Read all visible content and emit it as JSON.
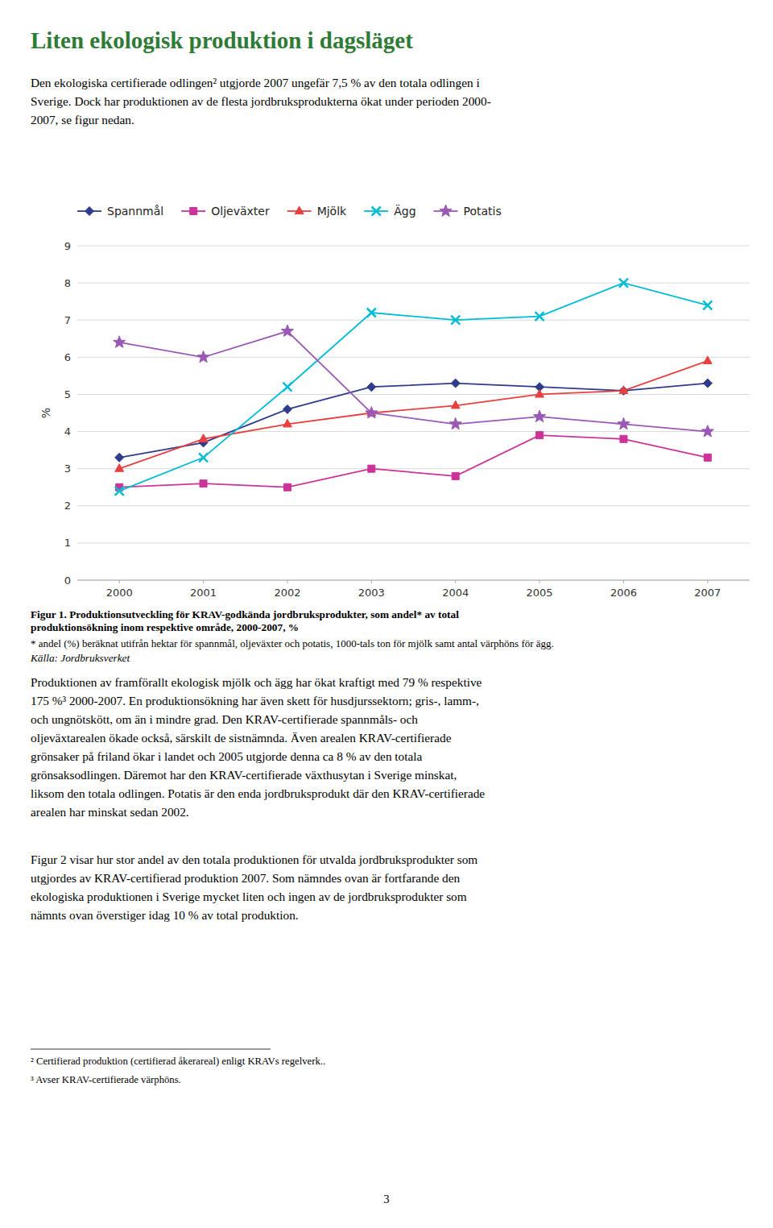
{
  "chart_data": {
    "type": "line",
    "title": "Liten ekologisk produktion i dagsläget",
    "x": [
      2000,
      2001,
      2002,
      2003,
      2004,
      2005,
      2006,
      2007
    ],
    "xlim": [
      1999.5,
      2007.5
    ],
    "xticks": [
      2000,
      2001,
      2002,
      2003,
      2004,
      2005,
      2006,
      2007
    ],
    "ylim": [
      0,
      9
    ],
    "yticks": [
      0,
      1,
      2,
      3,
      4,
      5,
      6,
      7,
      8,
      9
    ],
    "ylabel": "%",
    "grid": true,
    "legend": "top-left",
    "series": [
      {
        "name": "Spannmål",
        "color": "#2f3b8c",
        "marker": "diamond",
        "line_style": "solid",
        "values": [
          3.3,
          3.7,
          4.6,
          5.2,
          5.3,
          5.2,
          5.1,
          5.3
        ]
      },
      {
        "name": "Oljeväxter",
        "color": "#cc3399",
        "marker": "square",
        "line_style": "solid",
        "values": [
          2.5,
          2.6,
          2.5,
          3.0,
          2.8,
          3.9,
          3.8,
          3.3
        ]
      },
      {
        "name": "Mjölk",
        "color": "#e84040",
        "marker": "triangle",
        "line_style": "solid",
        "values": [
          3.0,
          3.8,
          4.2,
          4.5,
          4.7,
          5.0,
          5.1,
          5.9
        ]
      },
      {
        "name": "Ägg",
        "color": "#00bcd4",
        "marker": "x",
        "line_style": "solid",
        "values": [
          2.4,
          3.3,
          5.2,
          7.2,
          7.0,
          7.1,
          8.0,
          7.4
        ]
      },
      {
        "name": "Potatis",
        "color": "#9b59b6",
        "marker": "star",
        "line_style": "solid",
        "values": [
          6.4,
          6.0,
          6.7,
          4.5,
          4.2,
          4.4,
          4.2,
          4.0
        ]
      }
    ],
    "annotations": [
      [
        "Den ekologiska certifierade odlingen² utgjorde 2007 ungefär 7,5 % av den totala odlingen i",
        "Sverige. Dock har produktionen av de flesta jordbruksprodukterna ökat under perioden 2000-",
        "2007, se figur nedan."
      ],
      [
        "Figur 1. Produktionsutveckling för KRAV-godkända jordbruksprodukter, som andel* av total",
        "produktionsökning inom respektive område, 2000-2007, %"
      ],
      [
        "* andel (%) beräknat utifrån hektar för spannmål, oljeväxter och potatis, 1000-tals ton för mjölk samt antal värphöns för ägg."
      ],
      [
        "Källa: Jordbruksverket"
      ],
      [
        "Produktionen av framförallt ekologisk mjölk och ägg har ökat kraftigt med 79 % respektive",
        "175 %³ 2000-2007. En produktionsökning har även skett för husdjurssektorn; gris-, lamm-,",
        "och ungnötskött, om än i mindre grad. Den KRAV-certifierade spannmåls- och",
        "oljeväxtarealen ökade också, särskilt de sistnämnda. Även arealen KRAV-certifierade",
        "grönsaker på friland ökar i landet och 2005 utgjorde denna ca 8 % av den totala",
        "grönsaksodlingen. Däremot har den KRAV-certifierade växthusytan i Sverige minskat,",
        "liksom den totala odlingen. Potatis är den enda jordbruksprodukt där den KRAV-certifierade",
        "arealen har minskat sedan 2002."
      ],
      [
        "Figur 2 visar hur stor andel av den totala produktionen för utvalda jordbruksprodukter som",
        "utgjordes av KRAV-certifierad produktion 2007. Som nämndes ovan är fortfarande den",
        "ekologiska produktionen i Sverige mycket liten och ingen av de jordbruksprodukter som",
        "nämnts ovan överstiger idag 10 % av total produktion."
      ],
      [
        "² Certifierad produktion (certifierad åkerareal) enligt KRAVs regelverk.."
      ],
      [
        "³ Avser KRAV-certifierade värphöns."
      ],
      [
        "3"
      ]
    ]
  }
}
